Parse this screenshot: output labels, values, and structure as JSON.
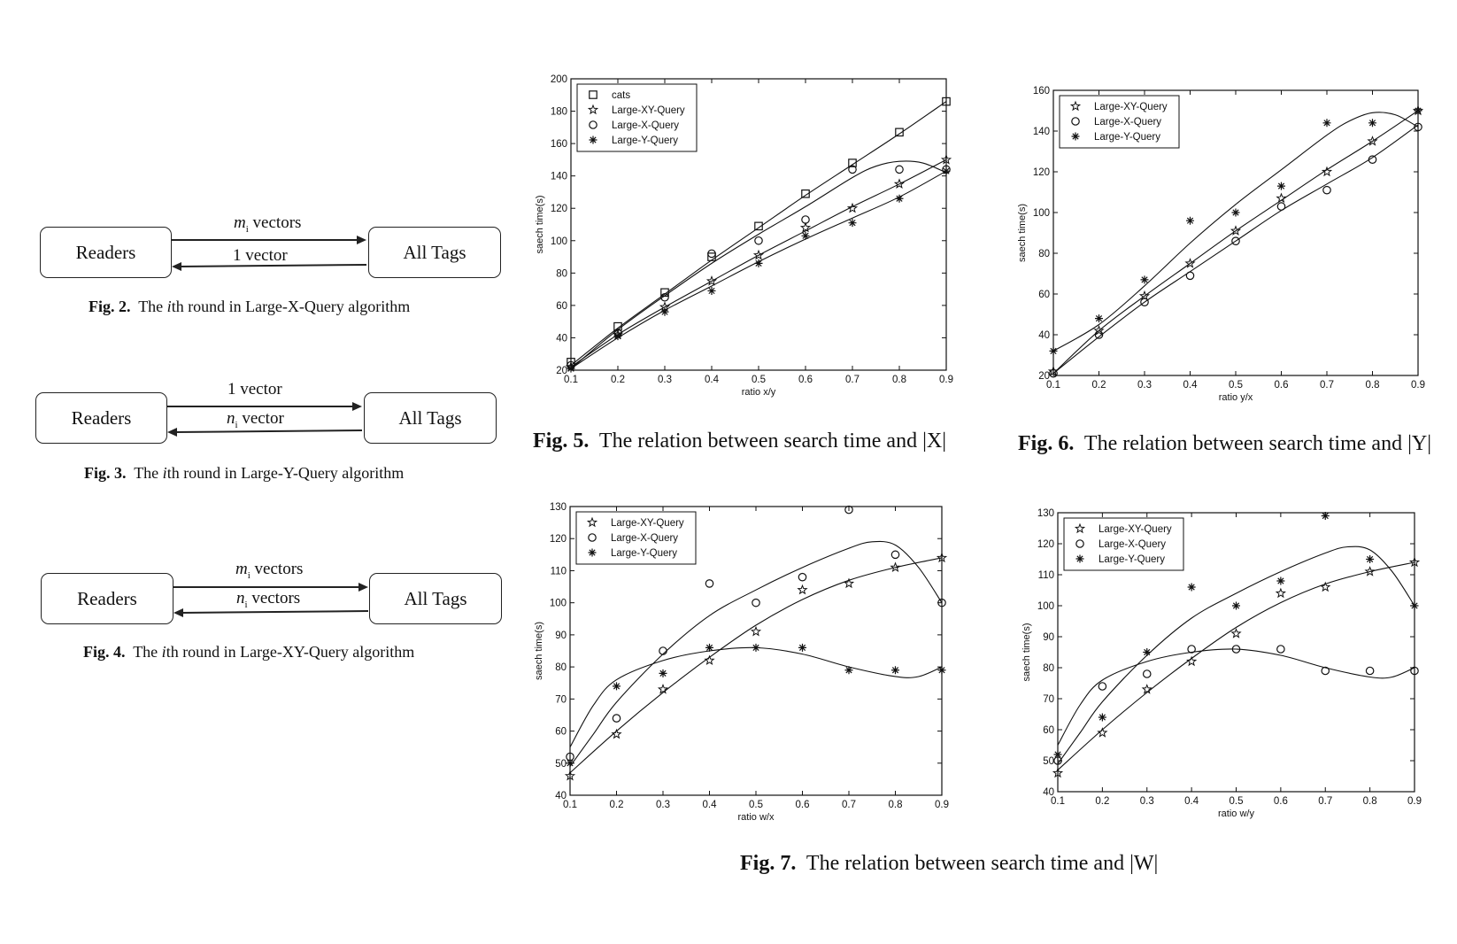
{
  "diagrams": [
    {
      "id": "fig2",
      "left_box": "Readers",
      "right_box": "All Tags",
      "top_arrow": {
        "var": "m",
        "sub": "i",
        "text": " vectors"
      },
      "bottom_arrow": {
        "var": "",
        "sub": "",
        "text": "1 vector"
      },
      "caption": {
        "label": "Fig. 2.",
        "pre": "The ",
        "ital": "i",
        "post": "th round in Large-X-Query algorithm"
      }
    },
    {
      "id": "fig3",
      "left_box": "Readers",
      "right_box": "All Tags",
      "top_arrow": {
        "var": "",
        "sub": "",
        "text": "1 vector"
      },
      "bottom_arrow": {
        "var": "n",
        "sub": "i",
        "text": " vector"
      },
      "caption": {
        "label": "Fig. 3.",
        "pre": "The ",
        "ital": "i",
        "post": "th round in Large-Y-Query algorithm"
      }
    },
    {
      "id": "fig4",
      "left_box": "Readers",
      "right_box": "All Tags",
      "top_arrow": {
        "var": "m",
        "sub": "i",
        "text": " vectors"
      },
      "bottom_arrow": {
        "var": "n",
        "sub": "i",
        "text": " vectors"
      },
      "caption": {
        "label": "Fig. 4.",
        "pre": "The ",
        "ital": "i",
        "post": "th round in Large-XY-Query algorithm"
      }
    }
  ],
  "captions": {
    "fig5": {
      "label": "Fig. 5.",
      "text": "The relation between search time and |X|"
    },
    "fig6": {
      "label": "Fig. 6.",
      "text": "The relation between search time and |Y|"
    },
    "fig7": {
      "label": "Fig. 7.",
      "text": "The relation between search time and |W|"
    }
  },
  "chart_data": [
    {
      "id": "chart5",
      "type": "scatter",
      "xlabel": "ratio x/y",
      "ylabel": "saech time(s)",
      "xlim": [
        0.1,
        0.9
      ],
      "ylim": [
        20,
        200
      ],
      "xticks": [
        0.1,
        0.2,
        0.3,
        0.4,
        0.5,
        0.6,
        0.7,
        0.8,
        0.9
      ],
      "yticks": [
        20,
        40,
        60,
        80,
        100,
        120,
        140,
        160,
        180,
        200
      ],
      "legend": "top-left",
      "series": [
        {
          "name": "cats",
          "marker": "square",
          "x": [
            0.1,
            0.2,
            0.3,
            0.4,
            0.5,
            0.6,
            0.7,
            0.8,
            0.9
          ],
          "y": [
            25,
            47,
            68,
            90,
            109,
            129,
            148,
            167,
            186
          ],
          "fit": {
            "x": [
              0.1,
              0.2,
              0.3,
              0.4,
              0.5,
              0.6,
              0.7,
              0.8,
              0.9
            ],
            "y": [
              23,
              46,
              67,
              88,
              108,
              128,
              147,
              166,
              186
            ]
          }
        },
        {
          "name": "Large-XY-Query",
          "marker": "star",
          "x": [
            0.1,
            0.2,
            0.3,
            0.4,
            0.5,
            0.6,
            0.7,
            0.8,
            0.9
          ],
          "y": [
            22,
            42,
            59,
            75,
            91,
            108,
            120,
            135,
            150
          ],
          "fit": {
            "x": [
              0.1,
              0.2,
              0.3,
              0.4,
              0.5,
              0.6,
              0.7,
              0.8,
              0.9
            ],
            "y": [
              22,
              42,
              59,
              75,
              91,
              106,
              121,
              135,
              150
            ]
          }
        },
        {
          "name": "Large-X-Query",
          "marker": "circle",
          "x": [
            0.1,
            0.2,
            0.3,
            0.4,
            0.5,
            0.6,
            0.7,
            0.8,
            0.9
          ],
          "y": [
            23,
            43,
            65,
            92,
            100,
            113,
            144,
            144,
            144
          ],
          "fit": {
            "x": [
              0.1,
              0.2,
              0.3,
              0.4,
              0.5,
              0.6,
              0.7,
              0.75,
              0.8,
              0.85,
              0.9
            ],
            "y": [
              21,
              45,
              66,
              86,
              104,
              121,
              139,
              146,
              149,
              148,
              142
            ]
          }
        },
        {
          "name": "Large-Y-Query",
          "marker": "asterisk",
          "x": [
            0.1,
            0.2,
            0.3,
            0.4,
            0.5,
            0.6,
            0.7,
            0.8,
            0.9
          ],
          "y": [
            21,
            41,
            56,
            69,
            86,
            103,
            111,
            126,
            143
          ],
          "fit": {
            "x": [
              0.1,
              0.2,
              0.3,
              0.4,
              0.5,
              0.6,
              0.7,
              0.8,
              0.9
            ],
            "y": [
              21,
              40,
              57,
              72,
              87,
              101,
              114,
              127,
              143
            ]
          }
        }
      ]
    },
    {
      "id": "chart6",
      "type": "scatter",
      "xlabel": "ratio y/x",
      "ylabel": "saech time(s)",
      "xlim": [
        0.1,
        0.9
      ],
      "ylim": [
        20,
        160
      ],
      "xticks": [
        0.1,
        0.2,
        0.3,
        0.4,
        0.5,
        0.6,
        0.7,
        0.8,
        0.9
      ],
      "yticks": [
        20,
        40,
        60,
        80,
        100,
        120,
        140,
        160
      ],
      "legend": "top-left",
      "series": [
        {
          "name": "Large-XY-Query",
          "marker": "star",
          "x": [
            0.1,
            0.2,
            0.3,
            0.4,
            0.5,
            0.6,
            0.7,
            0.8,
            0.9
          ],
          "y": [
            22,
            42,
            59,
            75,
            91,
            107,
            120,
            135,
            150
          ],
          "fit": {
            "x": [
              0.1,
              0.2,
              0.3,
              0.4,
              0.5,
              0.6,
              0.7,
              0.8,
              0.9
            ],
            "y": [
              21,
              42,
              59,
              75,
              91,
              106,
              121,
              135,
              150
            ]
          }
        },
        {
          "name": "Large-X-Query",
          "marker": "circle",
          "x": [
            0.1,
            0.2,
            0.3,
            0.4,
            0.5,
            0.6,
            0.7,
            0.8,
            0.9
          ],
          "y": [
            21,
            40,
            56,
            69,
            86,
            103,
            111,
            126,
            142
          ],
          "fit": {
            "x": [
              0.1,
              0.2,
              0.3,
              0.4,
              0.5,
              0.6,
              0.7,
              0.8,
              0.9
            ],
            "y": [
              21,
              39,
              56,
              71,
              86,
              101,
              114,
              127,
              143
            ]
          }
        },
        {
          "name": "Large-Y-Query",
          "marker": "asterisk",
          "x": [
            0.1,
            0.2,
            0.3,
            0.4,
            0.5,
            0.6,
            0.7,
            0.8,
            0.9
          ],
          "y": [
            32,
            48,
            67,
            96,
            100,
            113,
            144,
            144,
            150
          ],
          "fit": {
            "x": [
              0.1,
              0.2,
              0.3,
              0.4,
              0.5,
              0.6,
              0.7,
              0.75,
              0.8,
              0.85,
              0.9
            ],
            "y": [
              32,
              45,
              64,
              85,
              104,
              121,
              138,
              145,
              149,
              148,
              142
            ]
          }
        }
      ]
    },
    {
      "id": "chart7a",
      "type": "scatter",
      "xlabel": "ratio w/x",
      "ylabel": "saech time(s)",
      "xlim": [
        0.1,
        0.9
      ],
      "ylim": [
        40,
        130
      ],
      "xticks": [
        0.1,
        0.2,
        0.3,
        0.4,
        0.5,
        0.6,
        0.7,
        0.8,
        0.9
      ],
      "yticks": [
        40,
        50,
        60,
        70,
        80,
        90,
        100,
        110,
        120,
        130
      ],
      "legend": "top-left",
      "series": [
        {
          "name": "Large-XY-Query",
          "marker": "star",
          "x": [
            0.1,
            0.2,
            0.3,
            0.4,
            0.5,
            0.6,
            0.7,
            0.8,
            0.9
          ],
          "y": [
            46,
            59,
            73,
            82,
            91,
            104,
            106,
            111,
            114
          ],
          "fit": {
            "x": [
              0.1,
              0.2,
              0.3,
              0.4,
              0.5,
              0.6,
              0.7,
              0.8,
              0.9
            ],
            "y": [
              47,
              60,
              72,
              83,
              93,
              101,
              107,
              111,
              114
            ]
          }
        },
        {
          "name": "Large-X-Query",
          "marker": "circle",
          "x": [
            0.1,
            0.2,
            0.3,
            0.4,
            0.5,
            0.6,
            0.7,
            0.8,
            0.9
          ],
          "y": [
            52,
            64,
            85,
            106,
            100,
            108,
            129,
            115,
            100
          ],
          "fit": {
            "x": [
              0.1,
              0.15,
              0.2,
              0.3,
              0.4,
              0.5,
              0.6,
              0.7,
              0.75,
              0.8,
              0.85,
              0.9
            ],
            "y": [
              49,
              59,
              69,
              84,
              96,
              104,
              111,
              117,
              119,
              118,
              111,
              100
            ]
          }
        },
        {
          "name": "Large-Y-Query",
          "marker": "asterisk",
          "x": [
            0.1,
            0.2,
            0.3,
            0.4,
            0.5,
            0.6,
            0.7,
            0.8,
            0.9
          ],
          "y": [
            50,
            74,
            78,
            86,
            86,
            86,
            79,
            79,
            79
          ],
          "fit": {
            "x": [
              0.1,
              0.15,
              0.2,
              0.3,
              0.4,
              0.5,
              0.6,
              0.7,
              0.8,
              0.85,
              0.9
            ],
            "y": [
              55,
              68,
              76,
              82,
              85,
              86,
              84,
              80,
              77,
              77,
              80
            ]
          }
        }
      ]
    },
    {
      "id": "chart7b",
      "type": "scatter",
      "xlabel": "ratio w/y",
      "ylabel": "saech time(s)",
      "xlim": [
        0.1,
        0.9
      ],
      "ylim": [
        40,
        130
      ],
      "xticks": [
        0.1,
        0.2,
        0.3,
        0.4,
        0.5,
        0.6,
        0.7,
        0.8,
        0.9
      ],
      "yticks": [
        40,
        50,
        60,
        70,
        80,
        90,
        100,
        110,
        120,
        130
      ],
      "legend": "top-left",
      "series": [
        {
          "name": "Large-XY-Query",
          "marker": "star",
          "x": [
            0.1,
            0.2,
            0.3,
            0.4,
            0.5,
            0.6,
            0.7,
            0.8,
            0.9
          ],
          "y": [
            46,
            59,
            73,
            82,
            91,
            104,
            106,
            111,
            114
          ],
          "fit": {
            "x": [
              0.1,
              0.2,
              0.3,
              0.4,
              0.5,
              0.6,
              0.7,
              0.8,
              0.9
            ],
            "y": [
              47,
              60,
              72,
              83,
              93,
              101,
              107,
              111,
              114
            ]
          }
        },
        {
          "name": "Large-X-Query",
          "marker": "circle",
          "x": [
            0.1,
            0.2,
            0.3,
            0.4,
            0.5,
            0.6,
            0.7,
            0.8,
            0.9
          ],
          "y": [
            50,
            74,
            78,
            86,
            86,
            86,
            79,
            79,
            79
          ],
          "fit": {
            "x": [
              0.1,
              0.15,
              0.2,
              0.3,
              0.4,
              0.5,
              0.6,
              0.7,
              0.8,
              0.85,
              0.9
            ],
            "y": [
              55,
              68,
              76,
              82,
              85,
              86,
              84,
              80,
              77,
              77,
              80
            ]
          }
        },
        {
          "name": "Large-Y-Query",
          "marker": "asterisk",
          "x": [
            0.1,
            0.2,
            0.3,
            0.4,
            0.5,
            0.6,
            0.7,
            0.8,
            0.9
          ],
          "y": [
            52,
            64,
            85,
            106,
            100,
            108,
            129,
            115,
            100
          ],
          "fit": {
            "x": [
              0.1,
              0.15,
              0.2,
              0.3,
              0.4,
              0.5,
              0.6,
              0.7,
              0.75,
              0.8,
              0.85,
              0.9
            ],
            "y": [
              49,
              59,
              69,
              84,
              96,
              104,
              111,
              117,
              119,
              118,
              111,
              100
            ]
          }
        }
      ]
    }
  ]
}
